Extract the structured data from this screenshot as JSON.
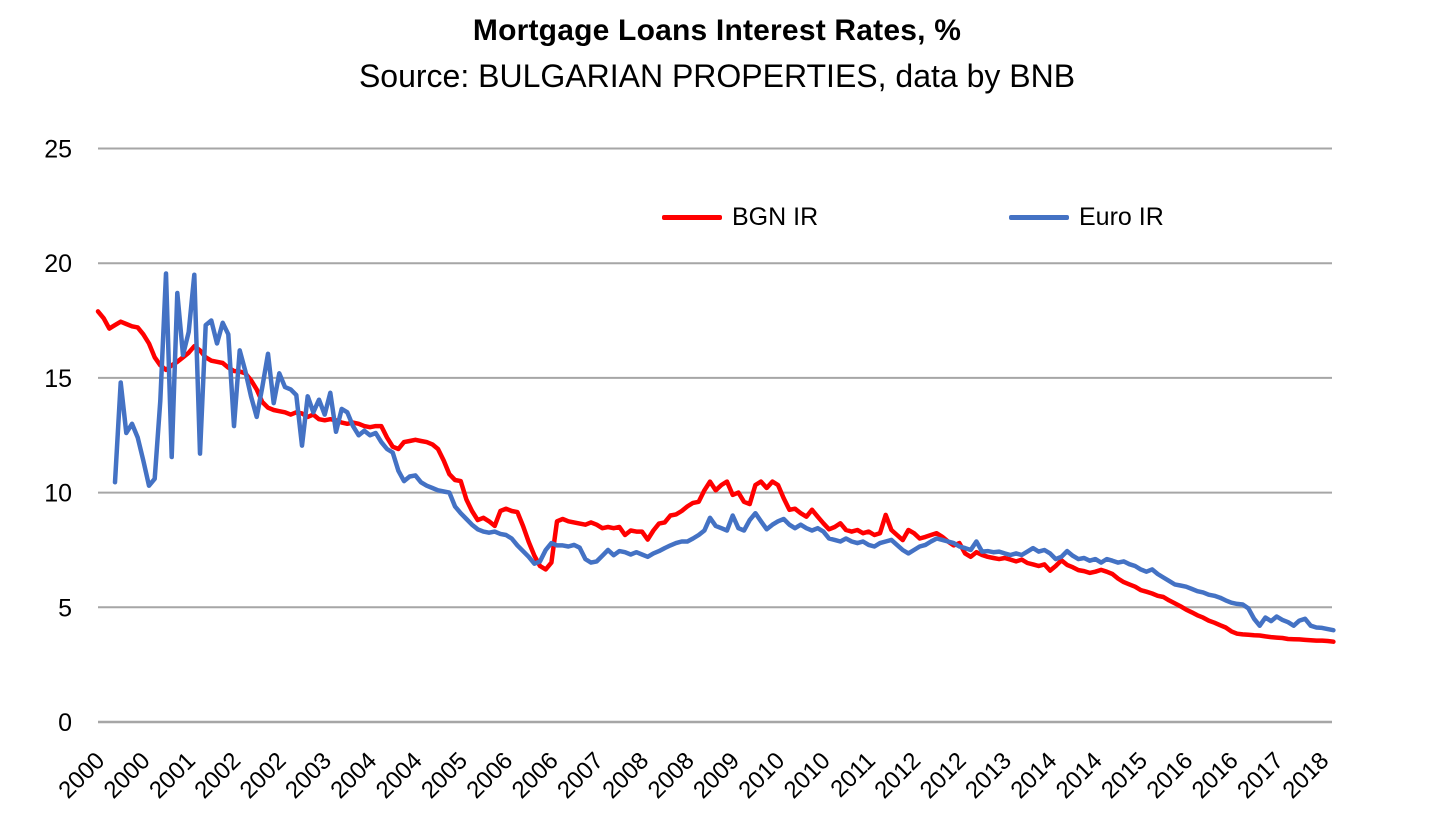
{
  "title": "Mortgage Loans Interest Rates, %",
  "subtitle": "Source: BULGARIAN PROPERTIES, data by BNB",
  "chart_data": {
    "type": "line",
    "title": "Mortgage Loans Interest Rates, %",
    "subtitle": "Source: BULGARIAN PROPERTIES, data by BNB",
    "grid": "horizontal",
    "grid_color": "#A6A6A6",
    "legend": {
      "position": "top-center-inline",
      "entries": [
        "BGN IR",
        "Euro IR"
      ]
    },
    "y_axis": {
      "min": 0,
      "max": 25,
      "tick_interval": 5,
      "ticks": [
        0,
        5,
        10,
        15,
        20,
        25
      ]
    },
    "x_axis": {
      "unit": "month",
      "start": "2000-01",
      "end": "2018-03",
      "months_between_ticks": 8,
      "tick_labels": [
        "2000",
        "2000",
        "2001",
        "2002",
        "2002",
        "2003",
        "2004",
        "2004",
        "2005",
        "2006",
        "2006",
        "2007",
        "2008",
        "2008",
        "2009",
        "2010",
        "2010",
        "2011",
        "2012",
        "2012",
        "2013",
        "2014",
        "2014",
        "2015",
        "2016",
        "2016",
        "2017",
        "2018"
      ]
    },
    "series": [
      {
        "name": "BGN IR",
        "color": "#FF0000",
        "start_month_index": 0,
        "values": [
          17.9,
          17.6,
          17.15,
          17.3,
          17.45,
          17.35,
          17.25,
          17.2,
          16.9,
          16.5,
          15.9,
          15.55,
          15.35,
          15.55,
          15.7,
          15.9,
          16.1,
          16.38,
          16.2,
          15.9,
          15.75,
          15.7,
          15.65,
          15.45,
          15.3,
          15.28,
          15.2,
          14.9,
          14.5,
          13.95,
          13.7,
          13.6,
          13.55,
          13.5,
          13.4,
          13.5,
          13.45,
          13.3,
          13.4,
          13.2,
          13.15,
          13.2,
          13.15,
          13.05,
          13.0,
          13.05,
          13.0,
          12.9,
          12.85,
          12.9,
          12.9,
          12.4,
          12.0,
          11.9,
          12.2,
          12.25,
          12.3,
          12.25,
          12.2,
          12.1,
          11.9,
          11.4,
          10.8,
          10.55,
          10.5,
          9.7,
          9.2,
          8.8,
          8.9,
          8.75,
          8.55,
          9.2,
          9.3,
          9.2,
          9.15,
          8.55,
          7.85,
          7.25,
          6.8,
          6.65,
          6.95,
          8.75,
          8.85,
          8.75,
          8.7,
          8.65,
          8.6,
          8.7,
          8.6,
          8.45,
          8.5,
          8.45,
          8.5,
          8.15,
          8.35,
          8.3,
          8.3,
          7.95,
          8.35,
          8.65,
          8.7,
          9.0,
          9.05,
          9.2,
          9.4,
          9.55,
          9.6,
          10.1,
          10.48,
          10.1,
          10.33,
          10.48,
          9.9,
          10.0,
          9.6,
          9.5,
          10.33,
          10.48,
          10.2,
          10.48,
          10.33,
          9.75,
          9.25,
          9.3,
          9.1,
          8.95,
          9.25,
          8.95,
          8.66,
          8.4,
          8.5,
          8.66,
          8.37,
          8.3,
          8.37,
          8.23,
          8.3,
          8.15,
          8.23,
          9.03,
          8.37,
          8.15,
          7.93,
          8.37,
          8.23,
          8.0,
          8.07,
          8.15,
          8.23,
          8.07,
          7.87,
          7.7,
          7.8,
          7.35,
          7.2,
          7.4,
          7.28,
          7.2,
          7.15,
          7.1,
          7.15,
          7.08,
          7.0,
          7.08,
          6.93,
          6.87,
          6.8,
          6.87,
          6.6,
          6.8,
          7.05,
          6.85,
          6.75,
          6.62,
          6.58,
          6.5,
          6.55,
          6.63,
          6.55,
          6.45,
          6.25,
          6.1,
          6.0,
          5.9,
          5.75,
          5.68,
          5.6,
          5.5,
          5.45,
          5.3,
          5.18,
          5.05,
          4.9,
          4.78,
          4.65,
          4.55,
          4.42,
          4.33,
          4.22,
          4.12,
          3.95,
          3.85,
          3.82,
          3.8,
          3.78,
          3.77,
          3.73,
          3.7,
          3.68,
          3.66,
          3.62,
          3.61,
          3.6,
          3.58,
          3.56,
          3.55,
          3.55,
          3.53,
          3.5
        ]
      },
      {
        "name": "Euro IR",
        "color": "#4472C4",
        "start_month_index": 3,
        "values": [
          10.45,
          14.8,
          12.6,
          13.0,
          12.4,
          11.4,
          10.3,
          10.6,
          14.0,
          19.55,
          11.55,
          18.7,
          16.0,
          17.0,
          19.5,
          11.7,
          17.3,
          17.5,
          16.5,
          17.4,
          16.9,
          12.9,
          16.2,
          15.3,
          14.2,
          13.3,
          14.6,
          16.05,
          13.9,
          15.2,
          14.6,
          14.5,
          14.25,
          12.05,
          14.2,
          13.5,
          14.05,
          13.4,
          14.35,
          12.65,
          13.65,
          13.5,
          12.9,
          12.5,
          12.7,
          12.5,
          12.6,
          12.2,
          11.9,
          11.75,
          10.95,
          10.5,
          10.7,
          10.75,
          10.45,
          10.3,
          10.2,
          10.1,
          10.05,
          10.0,
          9.4,
          9.1,
          8.85,
          8.6,
          8.4,
          8.3,
          8.25,
          8.3,
          8.2,
          8.15,
          8.0,
          7.7,
          7.45,
          7.2,
          6.9,
          7.0,
          7.5,
          7.8,
          7.7,
          7.7,
          7.65,
          7.72,
          7.6,
          7.1,
          6.95,
          7.0,
          7.25,
          7.5,
          7.27,
          7.45,
          7.4,
          7.3,
          7.4,
          7.3,
          7.2,
          7.35,
          7.45,
          7.58,
          7.7,
          7.8,
          7.87,
          7.87,
          8.0,
          8.15,
          8.35,
          8.9,
          8.55,
          8.45,
          8.35,
          9.0,
          8.45,
          8.35,
          8.8,
          9.1,
          8.75,
          8.4,
          8.6,
          8.75,
          8.85,
          8.6,
          8.45,
          8.6,
          8.45,
          8.35,
          8.45,
          8.3,
          8.0,
          7.94,
          7.87,
          8.0,
          7.87,
          7.8,
          7.87,
          7.72,
          7.65,
          7.8,
          7.87,
          7.94,
          7.72,
          7.5,
          7.35,
          7.5,
          7.65,
          7.72,
          7.87,
          8.0,
          7.94,
          7.87,
          7.8,
          7.65,
          7.58,
          7.5,
          7.87,
          7.43,
          7.45,
          7.4,
          7.43,
          7.35,
          7.28,
          7.35,
          7.28,
          7.43,
          7.58,
          7.43,
          7.5,
          7.35,
          7.1,
          7.2,
          7.45,
          7.25,
          7.1,
          7.15,
          7.03,
          7.1,
          6.95,
          7.1,
          7.03,
          6.95,
          7.0,
          6.88,
          6.8,
          6.65,
          6.55,
          6.65,
          6.45,
          6.3,
          6.15,
          6.0,
          5.95,
          5.9,
          5.8,
          5.7,
          5.65,
          5.55,
          5.5,
          5.42,
          5.3,
          5.2,
          5.15,
          5.12,
          4.95,
          4.5,
          4.2,
          4.55,
          4.4,
          4.6,
          4.45,
          4.35,
          4.2,
          4.42,
          4.5,
          4.2,
          4.12,
          4.1,
          4.05,
          4.0
        ]
      }
    ]
  }
}
